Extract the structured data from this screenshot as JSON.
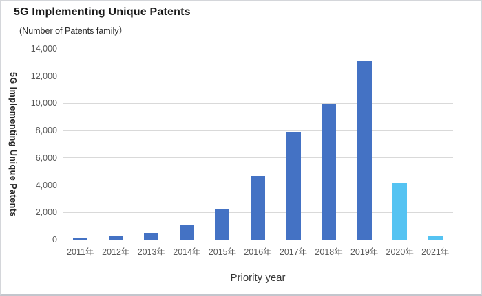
{
  "header": {
    "title": "5G Implementing Unique Patents",
    "subtitle": "(Number of Patents family）"
  },
  "chart_data": {
    "type": "bar",
    "title": "5G Implementing Unique Patents",
    "subtitle": "(Number of Patents family）",
    "xlabel": "Priority year",
    "ylabel": "5G Implementing Unique Patents",
    "categories": [
      "2011年",
      "2012年",
      "2013年",
      "2014年",
      "2015年",
      "2016年",
      "2017年",
      "2018年",
      "2019年",
      "2020年",
      "2021年"
    ],
    "values": [
      100,
      250,
      500,
      1050,
      2200,
      4700,
      7900,
      9950,
      13100,
      4200,
      300
    ],
    "highlight_indices": [
      9,
      10
    ],
    "ylim": [
      0,
      14000
    ],
    "yticks": [
      0,
      2000,
      4000,
      6000,
      8000,
      10000,
      12000,
      14000
    ],
    "ytick_labels": [
      "0",
      "2,000",
      "4,000",
      "6,000",
      "8,000",
      "10,000",
      "12,000",
      "14,000"
    ],
    "grid": true,
    "legend": "none",
    "colors": {
      "bar_primary": "#4472C4",
      "bar_highlight": "#55C3F2",
      "gridline": "#D9D9D9",
      "tick_text": "#595959",
      "title_text": "#1A1A1A"
    }
  }
}
